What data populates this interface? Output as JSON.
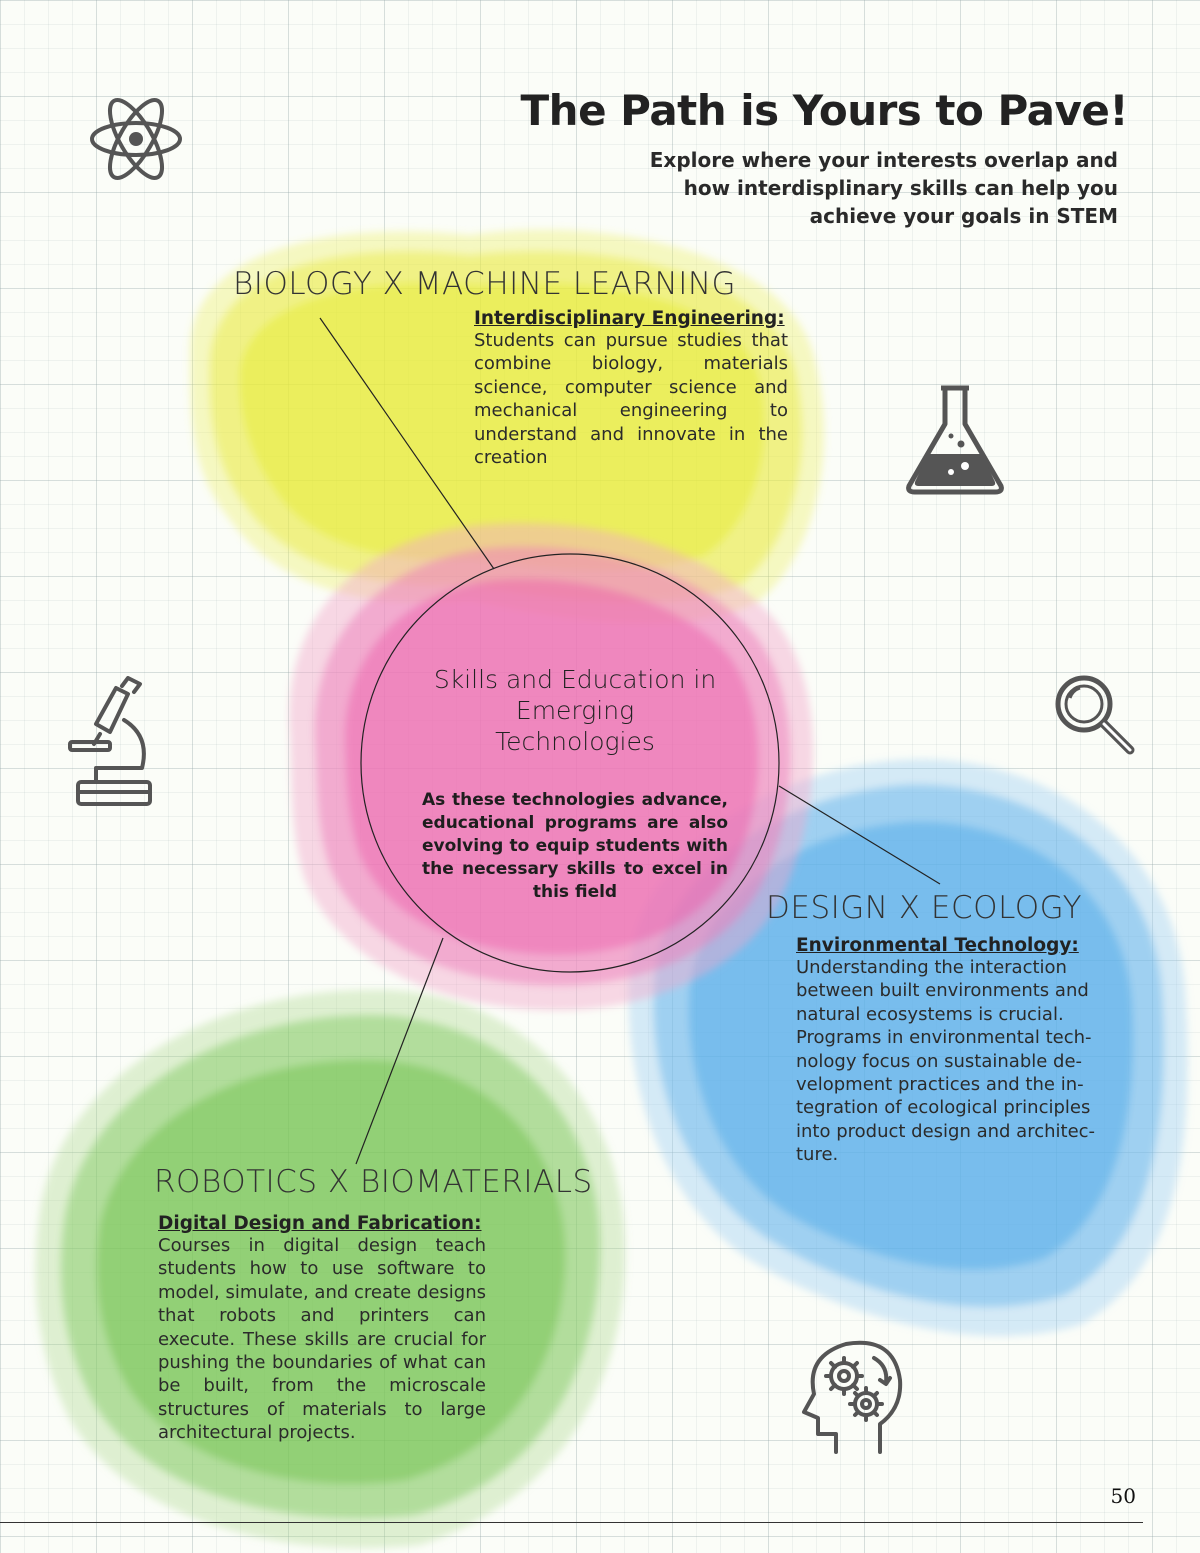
{
  "header": {
    "title": "The Path is Yours to Pave!",
    "subtitle_lines": [
      "Explore where your interests overlap  and",
      "how interdisplinary skills can help you",
      "achieve your goals in STEM"
    ]
  },
  "center": {
    "title_lines": [
      "Skills and Education in",
      "Emerging",
      "Technologies"
    ],
    "body": "As these technologies advance, educational programs are also evolving to equip students with the necessary skills to excel in this field"
  },
  "sections": {
    "biology": {
      "heading": "BIOLOGY X MACHINE LEARNING",
      "card_title": "Interdisciplinary Engineering:",
      "card_body": "Students can pursue studies that combine biology, materials science, computer science and mechanical engineering to understand and innovate in the creation"
    },
    "design": {
      "heading": "DESIGN X ECOLOGY",
      "card_title": "Environmental Technology:",
      "card_body_lines": [
        "Understanding the interaction",
        "between built environments and",
        "natural ecosystems is crucial.",
        "Programs in environmental tech-",
        "nology focus on sustainable de-",
        "velopment practices and the in-",
        "tegration of ecological principles",
        "into product design and architec-",
        "ture."
      ]
    },
    "robotics": {
      "heading": "ROBOTICS X BIOMATERIALS",
      "card_title": "Digital Design and Fabrication:",
      "card_body": "Courses in digital design teach students how to use software to model, simulate, and create designs that robots and printers can execute. These skills are crucial for pushing the boundaries of what can be built, from the microscale structures of materials to large architectural projects."
    }
  },
  "icons": [
    "atom-icon",
    "flask-icon",
    "microscope-icon",
    "magnifier-icon",
    "brain-gears-icon"
  ],
  "colors": {
    "yellow": "#e8ec3c",
    "pink": "#ea5ca8",
    "blue": "#4aa8e8",
    "green": "#6cbf4a",
    "icon": "#555555"
  },
  "page_number": "50"
}
